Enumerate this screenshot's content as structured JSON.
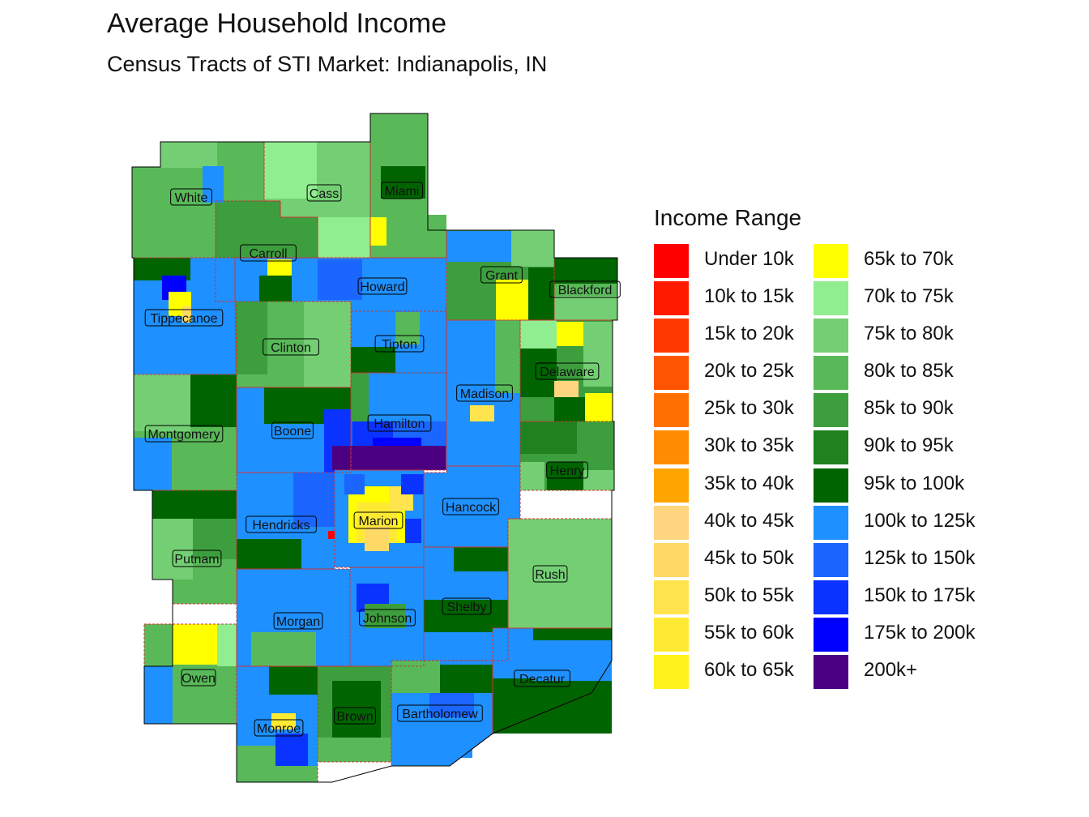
{
  "title": "Average Household Income",
  "subtitle": "Census Tracts of STI Market: Indianapolis, IN",
  "legend": {
    "title": "Income Range",
    "items": [
      {
        "label": "Under 10k",
        "color": "#ff0000"
      },
      {
        "label": "10k to 15k",
        "color": "#ff1a00"
      },
      {
        "label": "15k to 20k",
        "color": "#ff3800"
      },
      {
        "label": "20k to 25k",
        "color": "#ff5500"
      },
      {
        "label": "25k to 30k",
        "color": "#ff7000"
      },
      {
        "label": "30k to 35k",
        "color": "#ff8c00"
      },
      {
        "label": "35k to 40k",
        "color": "#ffa500"
      },
      {
        "label": "40k to 45k",
        "color": "#ffd580"
      },
      {
        "label": "45k to 50k",
        "color": "#ffd966"
      },
      {
        "label": "50k to 55k",
        "color": "#ffe44d"
      },
      {
        "label": "55k to 60k",
        "color": "#ffea33"
      },
      {
        "label": "60k to 65k",
        "color": "#fff21a"
      },
      {
        "label": "65k to 70k",
        "color": "#ffff00"
      },
      {
        "label": "70k to 75k",
        "color": "#90ee90"
      },
      {
        "label": "75k to 80k",
        "color": "#74cf74"
      },
      {
        "label": "80k to 85k",
        "color": "#59b959"
      },
      {
        "label": "85k to 90k",
        "color": "#3d9e3d"
      },
      {
        "label": "90k to 95k",
        "color": "#1f821f"
      },
      {
        "label": "95k to 100k",
        "color": "#006400"
      },
      {
        "label": "100k to 125k",
        "color": "#1e90ff"
      },
      {
        "label": "125k to 150k",
        "color": "#1a66ff"
      },
      {
        "label": "150k to 175k",
        "color": "#0a33ff"
      },
      {
        "label": "175k to 200k",
        "color": "#0000ff"
      },
      {
        "label": "200k+",
        "color": "#4b0082"
      }
    ]
  },
  "counties": [
    {
      "name": "White",
      "income": "80k to 85k"
    },
    {
      "name": "Cass",
      "income": "75k to 80k"
    },
    {
      "name": "Miami",
      "income": "80k to 85k"
    },
    {
      "name": "Carroll",
      "income": "85k to 90k"
    },
    {
      "name": "Howard",
      "income": "100k to 125k"
    },
    {
      "name": "Grant",
      "income": "85k to 90k"
    },
    {
      "name": "Blackford",
      "income": "80k to 85k"
    },
    {
      "name": "Tippecanoe",
      "income": "100k to 125k"
    },
    {
      "name": "Clinton",
      "income": "80k to 85k"
    },
    {
      "name": "Tipton",
      "income": "100k to 125k"
    },
    {
      "name": "Delaware",
      "income": "85k to 90k"
    },
    {
      "name": "Madison",
      "income": "100k to 125k"
    },
    {
      "name": "Montgomery",
      "income": "80k to 85k"
    },
    {
      "name": "Boone",
      "income": "100k to 125k"
    },
    {
      "name": "Hamilton",
      "income": "125k to 150k"
    },
    {
      "name": "Henry",
      "income": "85k to 90k"
    },
    {
      "name": "Hancock",
      "income": "100k to 125k"
    },
    {
      "name": "Hendricks",
      "income": "100k to 125k"
    },
    {
      "name": "Marion",
      "income": "100k to 125k"
    },
    {
      "name": "Putnam",
      "income": "80k to 85k"
    },
    {
      "name": "Rush",
      "income": "75k to 80k"
    },
    {
      "name": "Shelby",
      "income": "100k to 125k"
    },
    {
      "name": "Morgan",
      "income": "100k to 125k"
    },
    {
      "name": "Johnson",
      "income": "100k to 125k"
    },
    {
      "name": "Owen",
      "income": "80k to 85k"
    },
    {
      "name": "Decatur",
      "income": "95k to 100k"
    },
    {
      "name": "Brown",
      "income": "85k to 90k"
    },
    {
      "name": "Bartholomew",
      "income": "100k to 125k"
    },
    {
      "name": "Monroe",
      "income": "100k to 125k"
    }
  ]
}
